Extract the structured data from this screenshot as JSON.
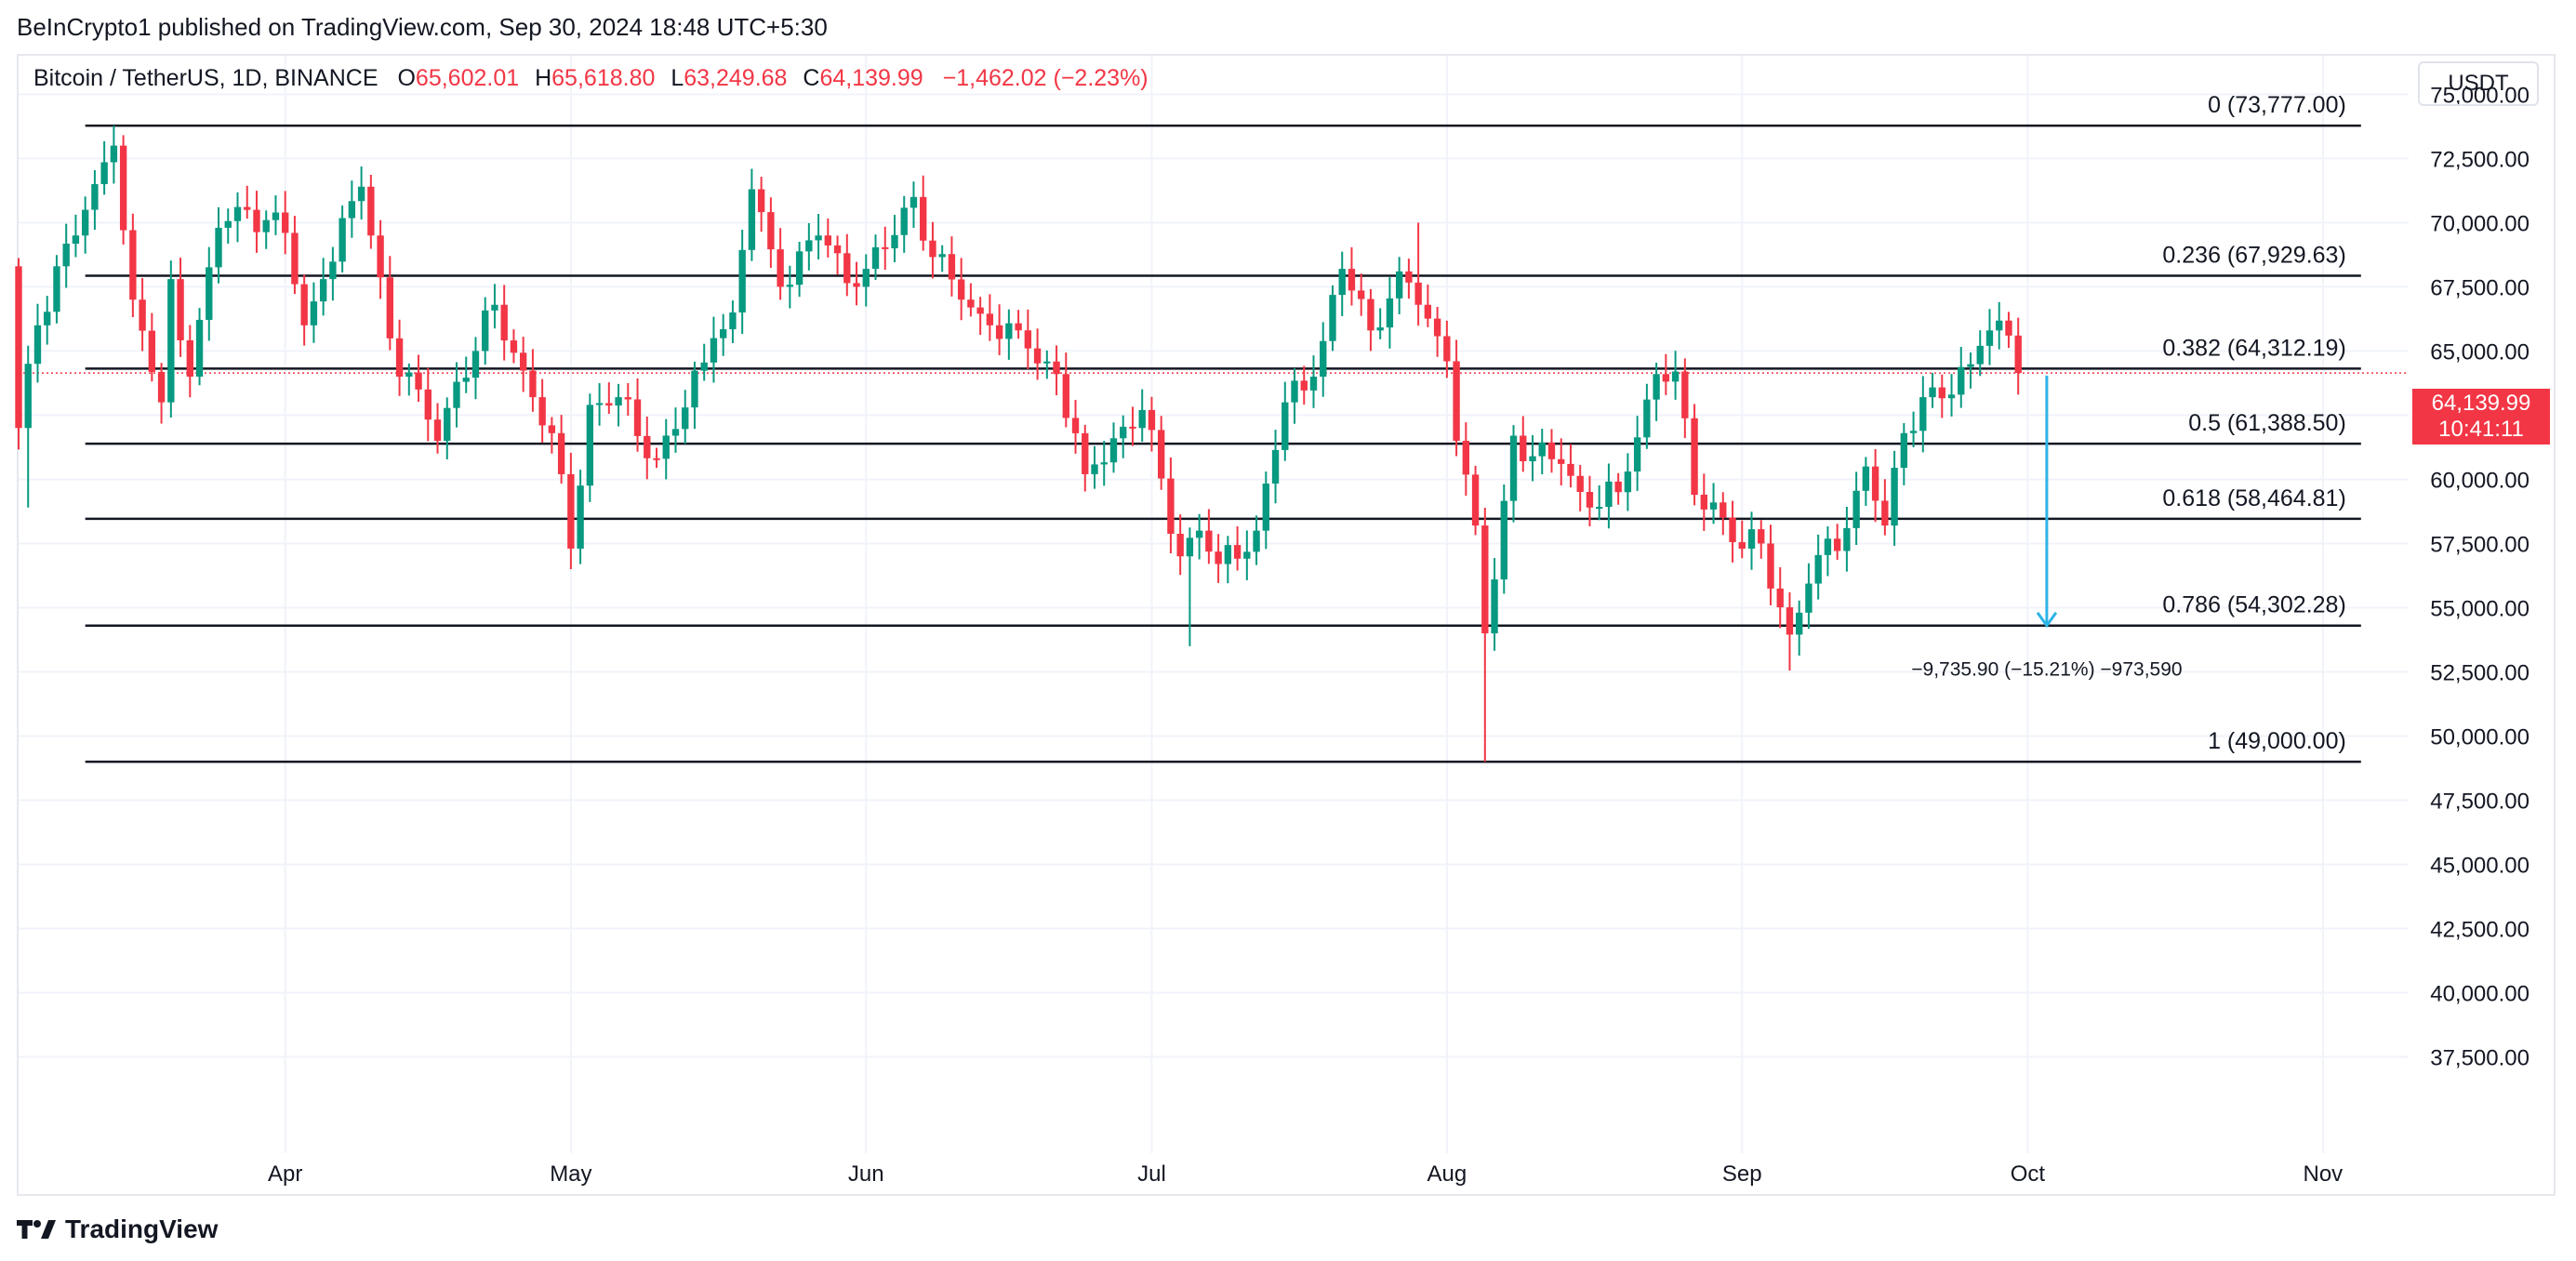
{
  "header": {
    "published": "BeInCrypto1 published on TradingView.com, Sep 30, 2024 18:48 UTC+5:30"
  },
  "legend": {
    "symbol": "Bitcoin / TetherUS, 1D, BINANCE",
    "o_label": "O",
    "o_value": "65,602.01",
    "h_label": "H",
    "h_value": "65,618.80",
    "l_label": "L",
    "l_value": "63,249.68",
    "c_label": "C",
    "c_value": "64,139.99",
    "change": "−1,462.02 (−2.23%)"
  },
  "currency": "USDT",
  "price_tag": {
    "price": "64,139.99",
    "countdown": "10:41:11"
  },
  "footer": {
    "brand": "TradingView"
  },
  "colors": {
    "up": "#089981",
    "down": "#f23645",
    "measure": "#2db4e6",
    "fib": "#131722",
    "grid": "#f0f3fa"
  },
  "chart_data": {
    "type": "candlestick",
    "ylim": [
      33750,
      76500
    ],
    "y_ticks": [
      37500,
      40000,
      42500,
      45000,
      47500,
      50000,
      52500,
      55000,
      57500,
      60000,
      62500,
      65000,
      67500,
      70000,
      72500,
      75000
    ],
    "y_tick_labels": [
      "37,500.00",
      "40,000.00",
      "42,500.00",
      "45,000.00",
      "47,500.00",
      "50,000.00",
      "52,500.00",
      "55,000.00",
      "57,500.00",
      "60,000.00",
      "62,500.00",
      "65,000.00",
      "67,500.00",
      "70,000.00",
      "72,500.00",
      "75,000.00"
    ],
    "x_start": "2024-03-04",
    "x_end": "2024-11-10",
    "x_ticks": [
      {
        "date": "2024-04-01",
        "label": "Apr"
      },
      {
        "date": "2024-05-01",
        "label": "May"
      },
      {
        "date": "2024-06-01",
        "label": "Jun"
      },
      {
        "date": "2024-07-01",
        "label": "Jul"
      },
      {
        "date": "2024-08-01",
        "label": "Aug"
      },
      {
        "date": "2024-09-01",
        "label": "Sep"
      },
      {
        "date": "2024-10-01",
        "label": "Oct"
      },
      {
        "date": "2024-11-01",
        "label": "Nov"
      }
    ],
    "current_price": 64139.99,
    "fib_start_date": "2024-03-11",
    "fib_end_date": "2024-11-05",
    "fib_levels": [
      {
        "ratio": "0",
        "price": 73777,
        "label": "0 (73,777.00)"
      },
      {
        "ratio": "0.236",
        "price": 67929.63,
        "label": "0.236 (67,929.63)"
      },
      {
        "ratio": "0.382",
        "price": 64312.19,
        "label": "0.382 (64,312.19)"
      },
      {
        "ratio": "0.5",
        "price": 61388.5,
        "label": "0.5 (61,388.50)"
      },
      {
        "ratio": "0.618",
        "price": 58464.81,
        "label": "0.618 (58,464.81)"
      },
      {
        "ratio": "0.786",
        "price": 54302.28,
        "label": "0.786 (54,302.28)"
      },
      {
        "ratio": "1",
        "price": 49000,
        "label": "1 (49,000.00)"
      }
    ],
    "measure": {
      "date": "2024-10-03",
      "from": 64040,
      "to": 54302.28,
      "label": "−9,735.90 (−15.21%) −973,590"
    },
    "anchors": [
      [
        "2024-03-04",
        62000
      ],
      [
        "2024-03-05",
        64500
      ],
      [
        "2024-03-06",
        66000
      ],
      [
        "2024-03-08",
        68300
      ],
      [
        "2024-03-10",
        69500
      ],
      [
        "2024-03-12",
        71500
      ],
      [
        "2024-03-14",
        73000
      ],
      [
        "2024-03-16",
        67000
      ],
      [
        "2024-03-19",
        63000
      ],
      [
        "2024-03-20",
        67800
      ],
      [
        "2024-03-22",
        64000
      ],
      [
        "2024-03-25",
        69800
      ],
      [
        "2024-03-28",
        70500
      ],
      [
        "2024-04-01",
        69600
      ],
      [
        "2024-04-03",
        66000
      ],
      [
        "2024-04-05",
        67800
      ],
      [
        "2024-04-09",
        71400
      ],
      [
        "2024-04-13",
        64000
      ],
      [
        "2024-04-15",
        63500
      ],
      [
        "2024-04-17",
        61500
      ],
      [
        "2024-04-19",
        63800
      ],
      [
        "2024-04-21",
        65000
      ],
      [
        "2024-04-23",
        66800
      ],
      [
        "2024-04-27",
        63200
      ],
      [
        "2024-04-30",
        60200
      ],
      [
        "2024-05-01",
        57300
      ],
      [
        "2024-05-03",
        62900
      ],
      [
        "2024-05-06",
        63200
      ],
      [
        "2024-05-10",
        60800
      ],
      [
        "2024-05-13",
        62800
      ],
      [
        "2024-05-16",
        65500
      ],
      [
        "2024-05-18",
        66500
      ],
      [
        "2024-05-20",
        71300
      ],
      [
        "2024-05-23",
        67500
      ],
      [
        "2024-05-27",
        69500
      ],
      [
        "2024-05-31",
        67500
      ],
      [
        "2024-06-03",
        69000
      ],
      [
        "2024-06-06",
        71000
      ],
      [
        "2024-06-07",
        69300
      ],
      [
        "2024-06-11",
        67000
      ],
      [
        "2024-06-14",
        66000
      ],
      [
        "2024-06-18",
        65100
      ],
      [
        "2024-06-21",
        64100
      ],
      [
        "2024-06-24",
        60200
      ],
      [
        "2024-06-27",
        61600
      ],
      [
        "2024-06-30",
        62700
      ],
      [
        "2024-07-04",
        57000
      ],
      [
        "2024-07-06",
        58000
      ],
      [
        "2024-07-08",
        56700
      ],
      [
        "2024-07-12",
        58000
      ],
      [
        "2024-07-15",
        63000
      ],
      [
        "2024-07-18",
        64000
      ],
      [
        "2024-07-21",
        68200
      ],
      [
        "2024-07-24",
        65800
      ],
      [
        "2024-07-27",
        68100
      ],
      [
        "2024-07-29",
        66800
      ],
      [
        "2024-08-01",
        64600
      ],
      [
        "2024-08-02",
        61500
      ],
      [
        "2024-08-04",
        58200
      ],
      [
        "2024-08-05",
        54000
      ],
      [
        "2024-08-06",
        56100
      ],
      [
        "2024-08-08",
        61700
      ],
      [
        "2024-08-10",
        60900
      ],
      [
        "2024-08-13",
        60600
      ],
      [
        "2024-08-16",
        58900
      ],
      [
        "2024-08-19",
        59500
      ],
      [
        "2024-08-23",
        64100
      ],
      [
        "2024-08-25",
        64200
      ],
      [
        "2024-08-27",
        59400
      ],
      [
        "2024-08-29",
        59100
      ],
      [
        "2024-09-01",
        57300
      ],
      [
        "2024-09-03",
        57500
      ],
      [
        "2024-09-06",
        53950
      ],
      [
        "2024-09-09",
        57050
      ],
      [
        "2024-09-12",
        58100
      ],
      [
        "2024-09-14",
        60500
      ],
      [
        "2024-09-16",
        58200
      ],
      [
        "2024-09-18",
        61800
      ],
      [
        "2024-09-20",
        63200
      ],
      [
        "2024-09-23",
        63300
      ],
      [
        "2024-09-26",
        65200
      ],
      [
        "2024-09-27",
        65800
      ],
      [
        "2024-09-29",
        65600
      ],
      [
        "2024-09-30",
        64140
      ]
    ],
    "wick_events": [
      {
        "date": "2024-03-05",
        "low": 58900
      },
      {
        "date": "2024-03-14",
        "high": 73777
      },
      {
        "date": "2024-05-01",
        "low": 56500
      },
      {
        "date": "2024-07-05",
        "low": 53500
      },
      {
        "date": "2024-07-29",
        "high": 70000
      },
      {
        "date": "2024-08-05",
        "low": 49000
      },
      {
        "date": "2024-09-06",
        "low": 52550
      }
    ]
  }
}
